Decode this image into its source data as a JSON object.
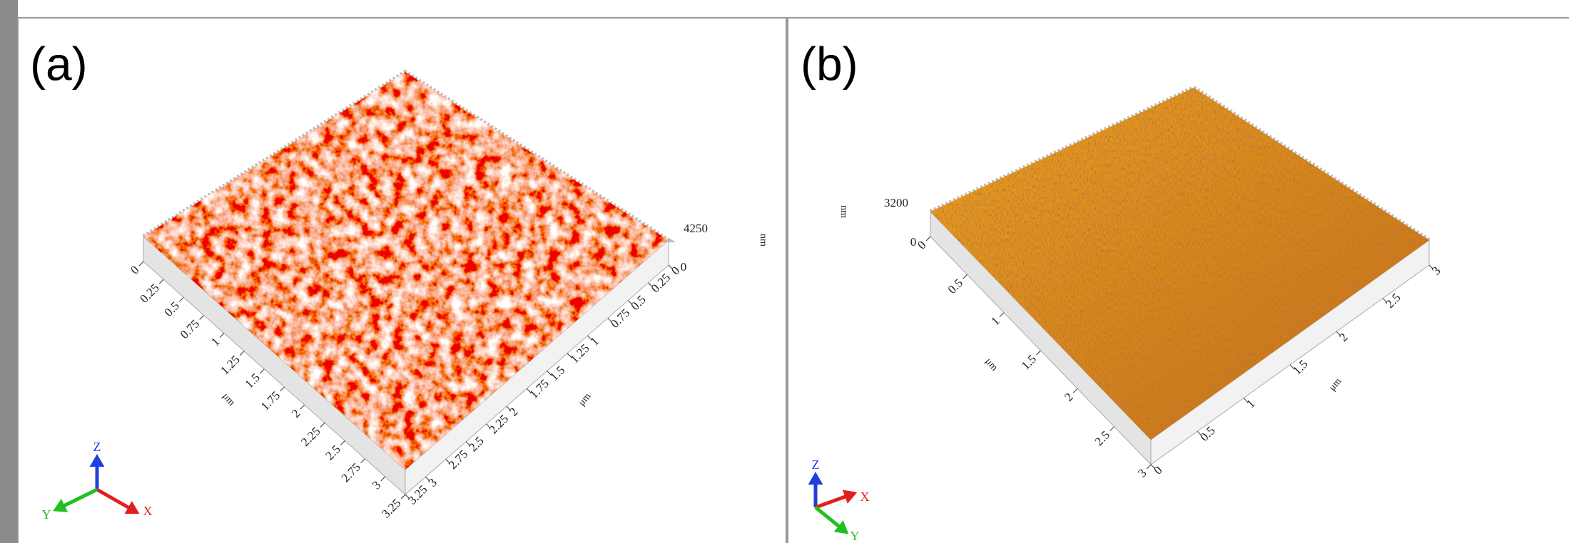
{
  "panels": [
    {
      "label": "(a)",
      "x_unit": "μm",
      "y_unit": "μm",
      "z_unit": "nm",
      "x_ticks": [
        0,
        0.25,
        0.5,
        0.75,
        1,
        1.25,
        1.5,
        1.75,
        2,
        2.25,
        2.5,
        2.75,
        3,
        3.25
      ],
      "y_ticks": [
        0,
        0.25,
        0.5,
        0.75,
        1,
        1.25,
        1.5,
        1.75,
        2,
        2.25,
        2.5,
        2.75,
        3,
        3.25
      ],
      "z_ticks": [
        4250,
        0
      ],
      "triad": {
        "x": "X",
        "y": "Y",
        "z": "Z"
      }
    },
    {
      "label": "(b)",
      "x_unit": "μm",
      "y_unit": "μm",
      "z_unit": "nm",
      "x_ticks": [
        0,
        0.5,
        1,
        1.5,
        2,
        2.5,
        3
      ],
      "y_ticks": [
        0,
        0.5,
        1,
        1.5,
        2,
        2.5,
        3
      ],
      "z_ticks": [
        3200,
        0
      ],
      "triad": {
        "x": "X",
        "y": "Y",
        "z": "Z"
      }
    }
  ]
}
